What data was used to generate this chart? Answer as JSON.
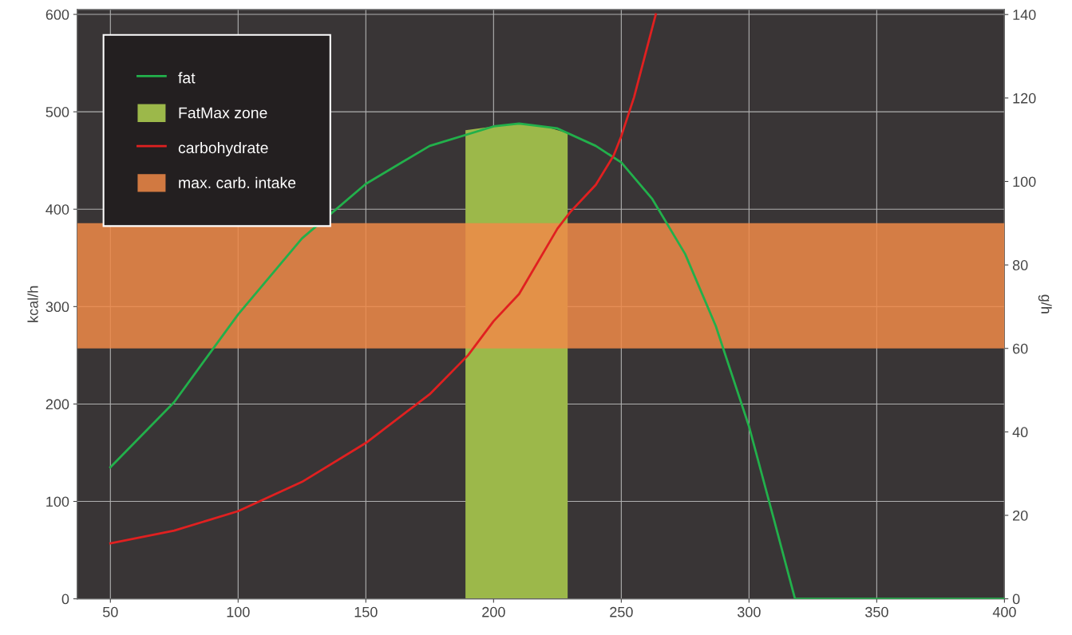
{
  "chart_data": {
    "type": "line",
    "ylabel": "kcal/h",
    "y2label": "g/h",
    "xlim": [
      37,
      400
    ],
    "xticks": [
      50,
      100,
      150,
      200,
      250,
      300,
      350,
      400
    ],
    "ylim": [
      0,
      605
    ],
    "yticks": [
      0,
      100,
      200,
      300,
      400,
      500,
      600
    ],
    "y2lim": [
      0,
      141.2
    ],
    "y2ticks": [
      0,
      20,
      40,
      60,
      80,
      100,
      120,
      140
    ],
    "grid": true,
    "legend": "top left",
    "marker": "none",
    "line_style": "solid",
    "series": [
      {
        "name": "fat",
        "color": "#22b04b",
        "x": [
          50,
          75,
          100,
          125,
          150,
          175,
          200,
          210,
          225,
          240,
          250,
          262,
          275,
          287,
          300,
          310,
          318,
          400
        ],
        "values": [
          135,
          202,
          292,
          370,
          426,
          465,
          485,
          488,
          483,
          465,
          448,
          411,
          354,
          280,
          177,
          79,
          0,
          0
        ]
      },
      {
        "name": "FatMax zone",
        "type": "area",
        "color": "#9cb84a",
        "x": [
          189,
          200,
          210,
          220,
          229
        ],
        "values": [
          481,
          485,
          488,
          485,
          478
        ]
      },
      {
        "name": "carbohydrate",
        "color": "#e02020",
        "x": [
          50,
          75,
          100,
          125,
          150,
          175,
          190,
          200,
          210,
          225,
          230,
          240,
          247,
          250,
          255,
          263.5
        ],
        "values": [
          57,
          70,
          90,
          120,
          160,
          210,
          250,
          285,
          313,
          380,
          397,
          425,
          455,
          475,
          515,
          600
        ]
      }
    ],
    "bands": [
      {
        "axis": "y2",
        "from": 60,
        "to": 90,
        "label": "max. carb. intake",
        "color": "#f08a48"
      }
    ]
  }
}
